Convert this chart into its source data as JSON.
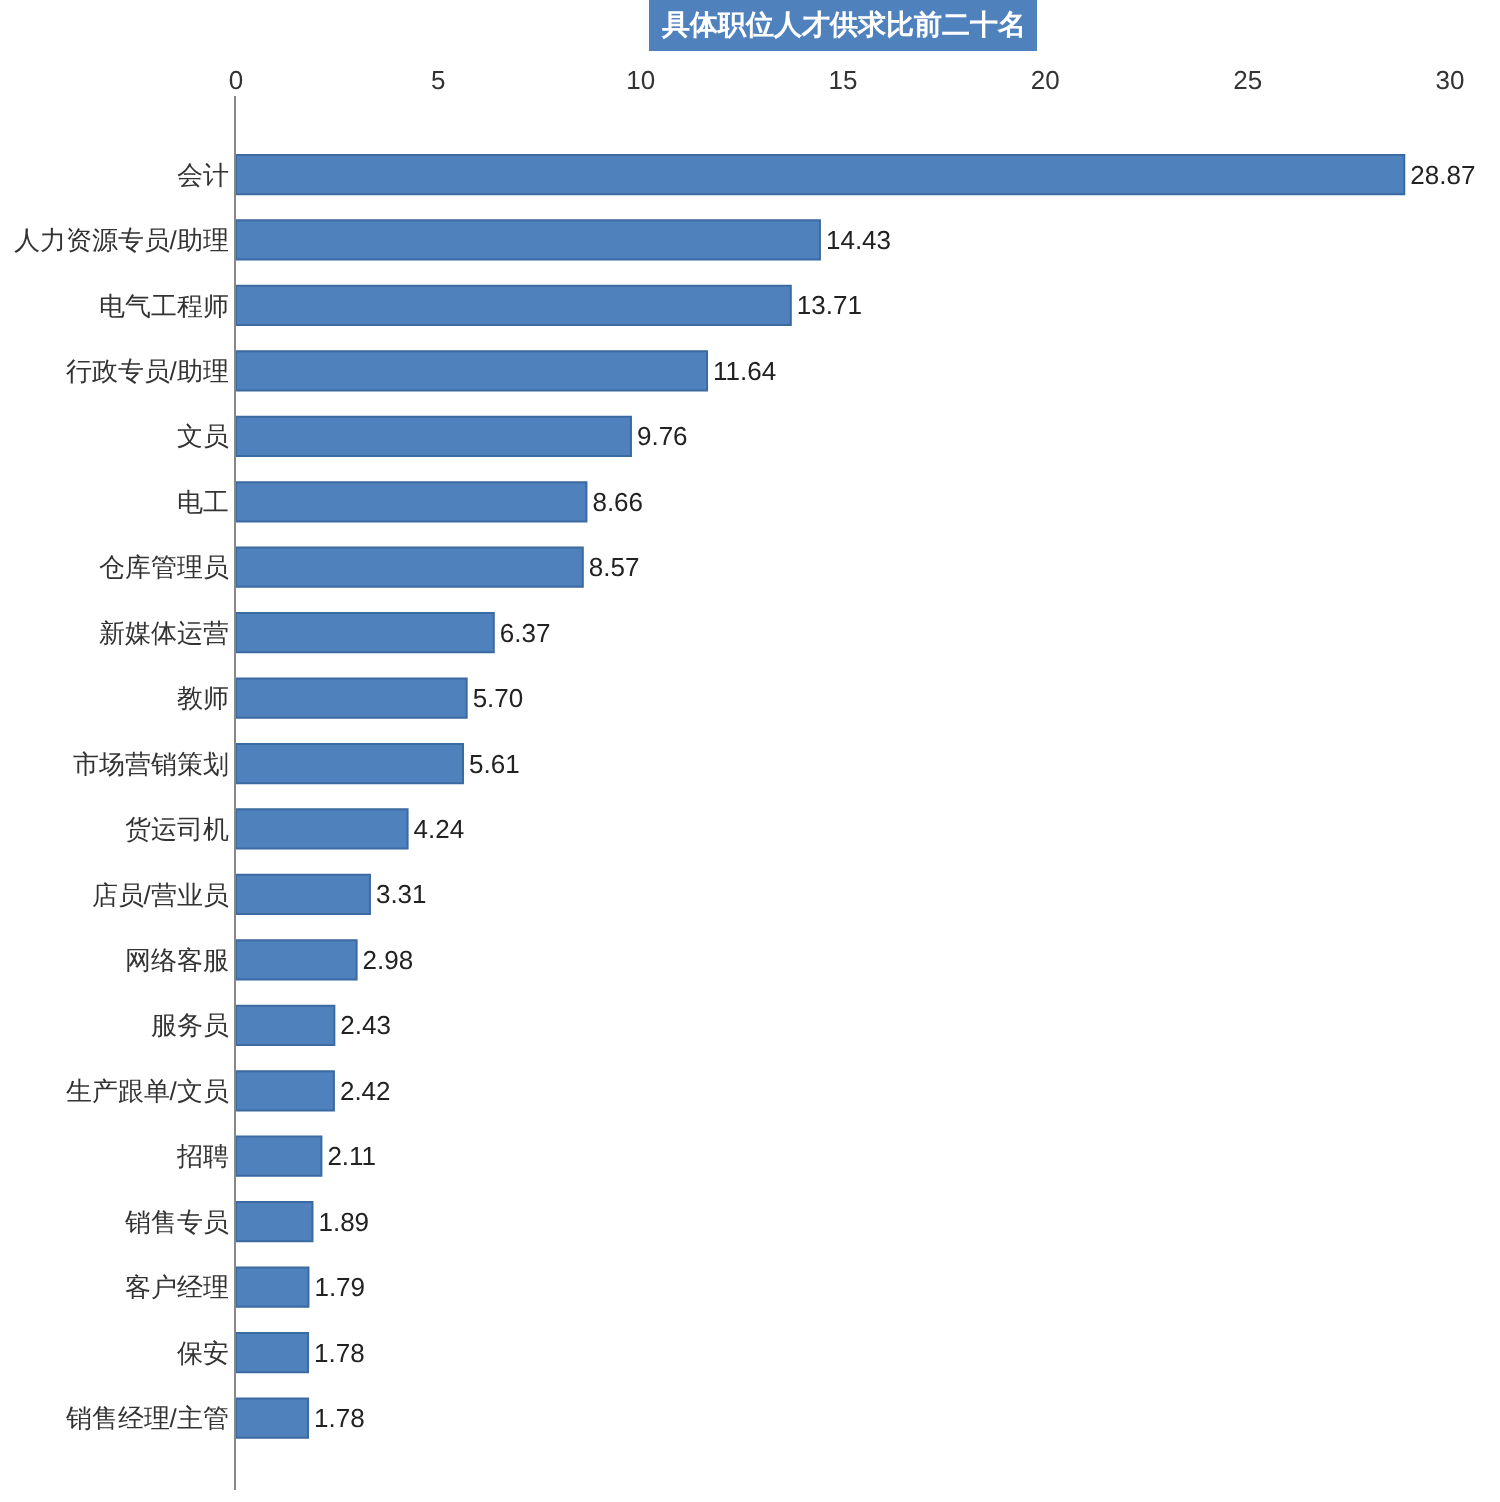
{
  "chart_data": {
    "type": "bar",
    "orientation": "horizontal",
    "title": "具体职位人才供求比前二十名",
    "categories": [
      "会计",
      "人力资源专员/助理",
      "电气工程师",
      "行政专员/助理",
      "文员",
      "电工",
      "仓库管理员",
      "新媒体运营",
      "教师",
      "市场营销策划",
      "货运司机",
      "店员/营业员",
      "网络客服",
      "服务员",
      "生产跟单/文员",
      "招聘",
      "销售专员",
      "客户经理",
      "保安",
      "销售经理/主管"
    ],
    "values": [
      28.87,
      14.43,
      13.71,
      11.64,
      9.76,
      8.66,
      8.57,
      6.37,
      5.7,
      5.61,
      4.24,
      3.31,
      2.98,
      2.43,
      2.42,
      2.11,
      1.89,
      1.79,
      1.78,
      1.78
    ],
    "value_labels": [
      "28.87",
      "14.43",
      "13.71",
      "11.64",
      "9.76",
      "8.66",
      "8.57",
      "6.37",
      "5.70",
      "5.61",
      "4.24",
      "3.31",
      "2.98",
      "2.43",
      "2.42",
      "2.11",
      "1.89",
      "1.79",
      "1.78",
      "1.78"
    ],
    "color": "#4f81bd",
    "xlim": [
      0,
      30
    ],
    "xticks": [
      0,
      5,
      10,
      15,
      20,
      25,
      30
    ],
    "grid": false,
    "legend": false
  }
}
